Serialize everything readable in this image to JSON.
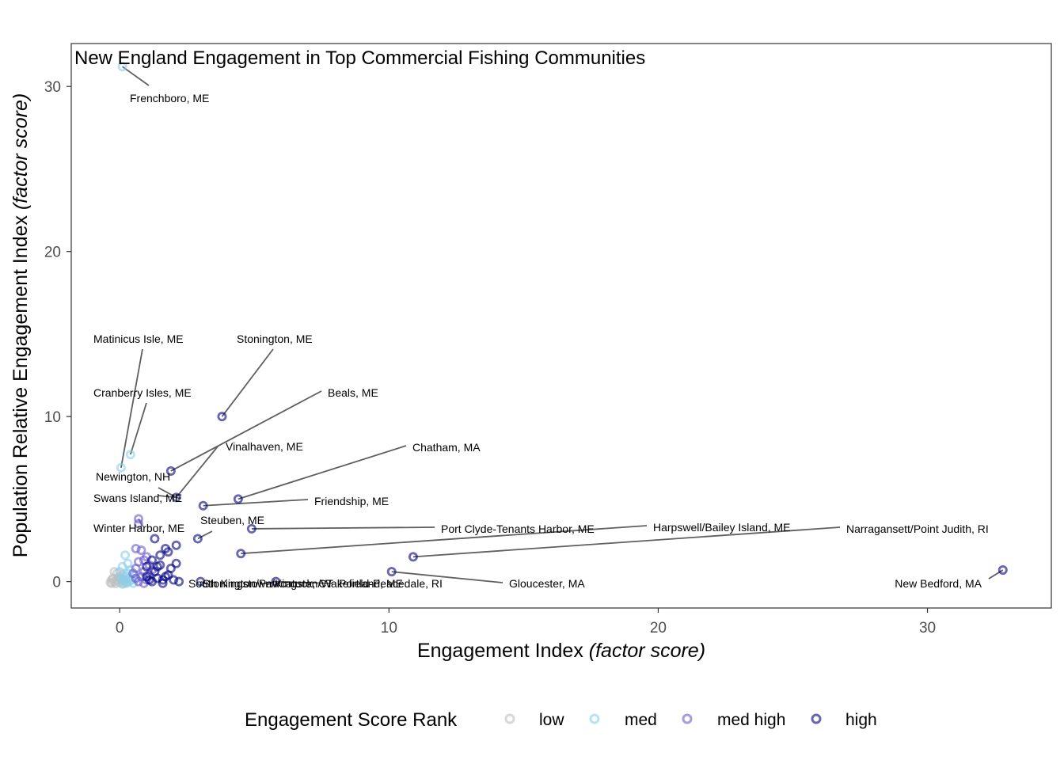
{
  "chart_data": {
    "type": "scatter",
    "title": "New England Engagement in Top Commercial Fishing Communities",
    "xlabel": {
      "main": "Engagement Index ",
      "italic": "(factor score)"
    },
    "ylabel": {
      "main": "Population Relative Engagement Index ",
      "italic": "(factor score)"
    },
    "xlim": [
      -1.8,
      34.6
    ],
    "ylim": [
      -1.6,
      32.6
    ],
    "x_ticks": [
      0,
      10,
      20,
      30
    ],
    "y_ticks": [
      0,
      10,
      20,
      30
    ],
    "grid": false,
    "legend": {
      "title": "Engagement Score Rank",
      "position": "bottom",
      "items": [
        {
          "label": "low",
          "color": "#bebebe"
        },
        {
          "label": "med",
          "color": "#87ceeb"
        },
        {
          "label": "med high",
          "color": "#6a5acd"
        },
        {
          "label": "high",
          "color": "#000080"
        }
      ]
    },
    "colors": {
      "low": "#bebebe",
      "med": "#87ceeb",
      "med high": "#6a5acd",
      "high": "#000080"
    },
    "series": [
      {
        "name": "low",
        "points": [
          [
            -0.3,
            -0.1
          ],
          [
            -0.2,
            0.0
          ],
          [
            -0.1,
            0.1
          ],
          [
            0.0,
            -0.05
          ],
          [
            0.05,
            0.15
          ],
          [
            -0.25,
            0.2
          ],
          [
            0.1,
            0.05
          ],
          [
            -0.15,
            -0.12
          ],
          [
            0.15,
            -0.1
          ],
          [
            -0.3,
            0.1
          ],
          [
            0.0,
            0.3
          ],
          [
            -0.1,
            0.5
          ],
          [
            -0.2,
            0.6
          ],
          [
            0.1,
            0.4
          ],
          [
            0.2,
            0.1
          ],
          [
            -0.05,
            0.25
          ],
          [
            0.25,
            0.0
          ],
          [
            -0.35,
            -0.05
          ]
        ]
      },
      {
        "name": "med",
        "points": [
          [
            0.1,
            31.2
          ],
          [
            0.4,
            7.7
          ],
          [
            0.05,
            6.9
          ],
          [
            0.2,
            1.6
          ],
          [
            0.1,
            0.9
          ],
          [
            0.3,
            0.5
          ],
          [
            0.0,
            0.6
          ],
          [
            0.15,
            0.1
          ],
          [
            0.25,
            -0.1
          ],
          [
            0.35,
            0.2
          ],
          [
            0.4,
            0.7
          ],
          [
            0.45,
            0.1
          ],
          [
            0.5,
            -0.1
          ],
          [
            0.55,
            0.4
          ],
          [
            0.6,
            0.2
          ],
          [
            0.2,
            0.3
          ],
          [
            0.1,
            -0.15
          ],
          [
            0.3,
            1.1
          ],
          [
            0.35,
            0.0
          ],
          [
            0.05,
            0.2
          ]
        ]
      },
      {
        "name": "med high",
        "points": [
          [
            0.7,
            3.8
          ],
          [
            0.7,
            3.5
          ],
          [
            0.6,
            2.0
          ],
          [
            0.8,
            1.9
          ],
          [
            1.0,
            1.5
          ],
          [
            0.9,
            1.3
          ],
          [
            0.7,
            1.2
          ],
          [
            0.6,
            0.8
          ],
          [
            0.9,
            0.6
          ],
          [
            1.1,
            0.4
          ],
          [
            0.8,
            0.3
          ],
          [
            1.0,
            0.1
          ],
          [
            0.7,
            0.0
          ],
          [
            0.9,
            -0.1
          ],
          [
            0.6,
            0.2
          ],
          [
            1.2,
            0.7
          ],
          [
            0.5,
            0.5
          ],
          [
            1.1,
            1.0
          ]
        ]
      },
      {
        "name": "high",
        "points": [
          [
            3.8,
            10.0
          ],
          [
            1.9,
            6.7
          ],
          [
            2.1,
            5.1
          ],
          [
            4.4,
            5.0
          ],
          [
            3.1,
            4.6
          ],
          [
            4.9,
            3.2
          ],
          [
            2.9,
            2.6
          ],
          [
            4.5,
            1.7
          ],
          [
            10.9,
            1.5
          ],
          [
            32.8,
            0.7
          ],
          [
            10.1,
            0.6
          ],
          [
            3.0,
            0.0
          ],
          [
            5.8,
            0.0
          ],
          [
            1.3,
            2.6
          ],
          [
            1.7,
            2.0
          ],
          [
            2.1,
            2.2
          ],
          [
            1.8,
            1.8
          ],
          [
            1.5,
            1.0
          ],
          [
            1.3,
            0.6
          ],
          [
            1.7,
            0.3
          ],
          [
            2.0,
            0.1
          ],
          [
            2.2,
            0.0
          ],
          [
            1.4,
            0.2
          ],
          [
            1.2,
            1.3
          ],
          [
            1.9,
            0.8
          ],
          [
            1.6,
            0.1
          ],
          [
            1.0,
            0.9
          ],
          [
            1.1,
            0.1
          ],
          [
            1.5,
            1.6
          ],
          [
            1.8,
            0.4
          ],
          [
            1.2,
            0.0
          ],
          [
            1.6,
            -0.1
          ],
          [
            2.1,
            1.1
          ],
          [
            1.0,
            0.3
          ],
          [
            1.4,
            0.9
          ]
        ]
      }
    ],
    "annotations": [
      {
        "label": "Frenchboro, ME",
        "x": 0.1,
        "y": 31.2
      },
      {
        "label": "Matinicus Isle, ME",
        "x": 0.05,
        "y": 6.9
      },
      {
        "label": "Cranberry Isles, ME",
        "x": 0.4,
        "y": 7.7
      },
      {
        "label": "Stonington, ME",
        "x": 3.8,
        "y": 10.0
      },
      {
        "label": "Beals, ME",
        "x": 1.9,
        "y": 6.7
      },
      {
        "label": "Vinalhaven, ME",
        "x": 2.1,
        "y": 5.1
      },
      {
        "label": "Chatham, MA",
        "x": 4.4,
        "y": 5.0
      },
      {
        "label": "Newington, NH",
        "x": 2.1,
        "y": 5.1
      },
      {
        "label": "Swans Island, ME",
        "x": 2.1,
        "y": 5.1
      },
      {
        "label": "Friendship, ME",
        "x": 3.1,
        "y": 4.6
      },
      {
        "label": "Winter Harbor, ME",
        "x": 0.7,
        "y": 3.8
      },
      {
        "label": "Steuben, ME",
        "x": 2.9,
        "y": 2.6
      },
      {
        "label": "Port Clyde-Tenants Harbor, ME",
        "x": 4.9,
        "y": 3.2
      },
      {
        "label": "Harpswell/Bailey Island, ME",
        "x": 4.5,
        "y": 1.7
      },
      {
        "label": "Narragansett/Point Judith, RI",
        "x": 10.9,
        "y": 1.5
      },
      {
        "label": "New Bedford, MA",
        "x": 32.8,
        "y": 0.7
      },
      {
        "label": "Gloucester, MA",
        "x": 10.1,
        "y": 0.6
      },
      {
        "label": "South Kingstown/Kingston/Wakefield-Peacedale, RI",
        "x": 3.0,
        "y": 0.0
      },
      {
        "label": "Stonington/Pawcatuck, CT",
        "x": 5.8,
        "y": 0.0
      },
      {
        "label": "Portland, ME",
        "x": 5.8,
        "y": 0.0
      }
    ]
  }
}
